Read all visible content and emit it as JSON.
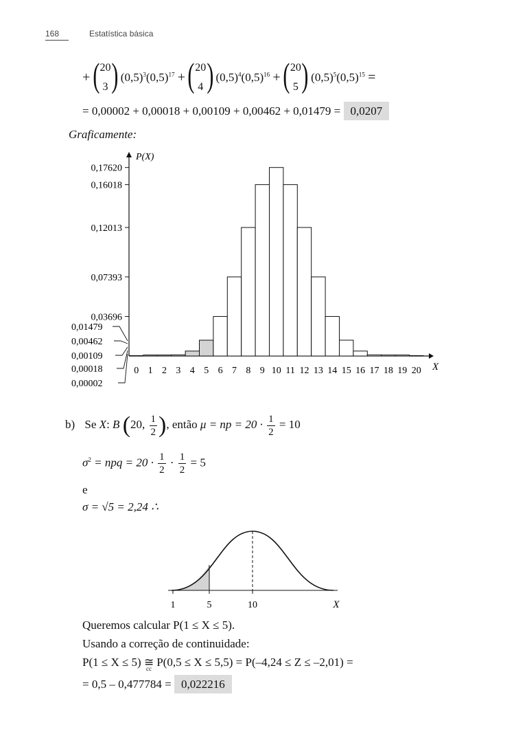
{
  "header": {
    "page_number": "168",
    "running_title": "Estatística básica"
  },
  "binomial_terms": [
    {
      "n": "20",
      "k": "3",
      "p1": "(0,5)",
      "e1": "3",
      "p2": "(0,5)",
      "e2": "17"
    },
    {
      "n": "20",
      "k": "4",
      "p1": "(0,5)",
      "e1": "4",
      "p2": "(0,5)",
      "e2": "16"
    },
    {
      "n": "20",
      "k": "5",
      "p1": "(0,5)",
      "e1": "5",
      "p2": "(0,5)",
      "e2": "15"
    }
  ],
  "sum_line": {
    "text": "= 0,00002 + 0,00018 + 0,00109 + 0,00462 + 0,01479 =",
    "result": "0,0207"
  },
  "graph_caption": "Graficamente:",
  "chart_data": {
    "type": "bar",
    "ylabel": "P(X)",
    "xlabel": "X",
    "categories": [
      "0",
      "1",
      "2",
      "3",
      "4",
      "5",
      "6",
      "7",
      "8",
      "9",
      "10",
      "11",
      "12",
      "13",
      "14",
      "15",
      "16",
      "17",
      "18",
      "19",
      "20"
    ],
    "values": [
      1e-06,
      2e-05,
      0.00018,
      0.00109,
      0.00462,
      0.01479,
      0.03696,
      0.07393,
      0.12013,
      0.16018,
      0.1762,
      0.16018,
      0.12013,
      0.07393,
      0.03696,
      0.01479,
      0.00462,
      0.00109,
      0.00018,
      2e-05,
      1e-06
    ],
    "ylim": [
      0,
      0.185
    ],
    "shaded_categories": [
      "1",
      "2",
      "3",
      "4",
      "5"
    ],
    "y_tick_labels": [
      "0,17620",
      "0,16018",
      "0,12013",
      "0,07393",
      "0,03696"
    ],
    "y_tick_values": [
      0.1762,
      0.16018,
      0.12013,
      0.07393,
      0.03696
    ],
    "small_value_labels": [
      "0,01479",
      "0,00462",
      "0,00109",
      "0,00018",
      "0,00002"
    ],
    "small_values": [
      0.01479,
      0.00462,
      0.00109,
      0.00018,
      2e-05
    ]
  },
  "part_b": {
    "label": "b)",
    "line1_a": "Se",
    "line1_b": "X",
    "line1_c": ":",
    "line1_d": "B",
    "line1_n": "20,",
    "line1_frac_num": "1",
    "line1_frac_den": "2",
    "line1_e": ", então",
    "line1_f": "μ = np = 20 ·",
    "line1_g": "= 10",
    "line2_a": "σ",
    "line2_sup": "2",
    "line2_b": "= npq = 20 ·",
    "line2_c": "·",
    "line2_d": "= 5",
    "word_e": "e",
    "line3_a": "σ = √5 = 2,24 ∴"
  },
  "normal_curve": {
    "tick_labels": [
      "1",
      "5",
      "10"
    ],
    "axis_label": "X"
  },
  "conclusion": {
    "line1": "Queremos calcular P(1 ≤ X ≤ 5).",
    "line2": "Usando a correção de continuidade:",
    "line3_a": "P(1 ≤ X ≤ 5)",
    "line3_approx": "≅",
    "line3_cc": "cc",
    "line3_b": "P(0,5 ≤ X ≤ 5,5) = P(–4,24 ≤ Z ≤ –2,01) =",
    "line4_a": "= 0,5 – 0,477784 =",
    "line4_result": "0,022216"
  }
}
